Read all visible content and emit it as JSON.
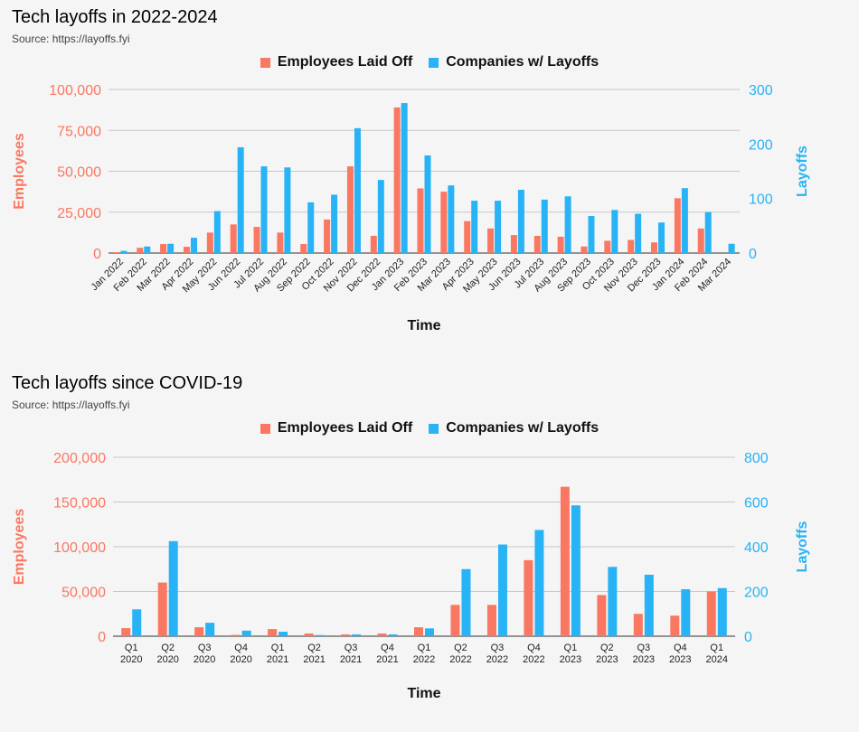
{
  "colors": {
    "employees": "#fa7762",
    "companies": "#27b3f5"
  },
  "chart_data": [
    {
      "type": "bar",
      "title": "Tech layoffs in 2022-2024",
      "subtitle": "Source: https://layoffs.fyi",
      "xlabel": "Time",
      "ylabel_left": "Employees",
      "ylabel_right": "Layoffs",
      "legend_position": "top-center",
      "grid": true,
      "ylim_left": [
        0,
        100000
      ],
      "ylim_right": [
        0,
        300
      ],
      "yticks_left": [
        "0",
        "25,000",
        "50,000",
        "75,000",
        "100,000"
      ],
      "yticks_right": [
        "0",
        "100",
        "200",
        "300"
      ],
      "categories": [
        "Jan 2022",
        "Feb 2022",
        "Mar 2022",
        "Apr 2022",
        "May 2022",
        "Jun 2022",
        "Jul 2022",
        "Aug 2022",
        "Sep 2022",
        "Oct 2022",
        "Nov 2022",
        "Dec 2022",
        "Jan 2023",
        "Feb 2023",
        "Mar 2023",
        "Apr 2023",
        "May 2023",
        "Jun 2023",
        "Jul 2023",
        "Aug 2023",
        "Sep 2023",
        "Oct 2023",
        "Nov 2023",
        "Dec 2023",
        "Jan 2024",
        "Feb 2024",
        "Mar 2024"
      ],
      "series": [
        {
          "name": "Employees Laid Off",
          "axis": "left",
          "values": [
            500,
            3200,
            5500,
            3800,
            12500,
            17500,
            16000,
            12500,
            5500,
            20500,
            53000,
            10500,
            89000,
            39500,
            37500,
            19500,
            15000,
            11000,
            10500,
            10000,
            4000,
            7500,
            8000,
            6500,
            33500,
            15000,
            0
          ]
        },
        {
          "name": "Companies w/ Layoffs",
          "axis": "right",
          "values": [
            4,
            12,
            17,
            28,
            77,
            194,
            159,
            157,
            93,
            107,
            229,
            134,
            275,
            179,
            124,
            96,
            96,
            116,
            98,
            104,
            68,
            79,
            72,
            56,
            119,
            75,
            17
          ]
        }
      ]
    },
    {
      "type": "bar",
      "title": "Tech layoffs since COVID-19",
      "subtitle": "Source: https://layoffs.fyi",
      "xlabel": "Time",
      "ylabel_left": "Employees",
      "ylabel_right": "Layoffs",
      "legend_position": "top-center",
      "grid": true,
      "ylim_left": [
        0,
        200000
      ],
      "ylim_right": [
        0,
        800
      ],
      "yticks_left": [
        "0",
        "50,000",
        "100,000",
        "150,000",
        "200,000"
      ],
      "yticks_right": [
        "0",
        "200",
        "400",
        "600",
        "800"
      ],
      "categories": [
        [
          "Q1",
          "2020"
        ],
        [
          "Q2",
          "2020"
        ],
        [
          "Q3",
          "2020"
        ],
        [
          "Q4",
          "2020"
        ],
        [
          "Q1",
          "2021"
        ],
        [
          "Q2",
          "2021"
        ],
        [
          "Q3",
          "2021"
        ],
        [
          "Q4",
          "2021"
        ],
        [
          "Q1",
          "2022"
        ],
        [
          "Q2",
          "2022"
        ],
        [
          "Q3",
          "2022"
        ],
        [
          "Q4",
          "2022"
        ],
        [
          "Q1",
          "2023"
        ],
        [
          "Q2",
          "2023"
        ],
        [
          "Q3",
          "2023"
        ],
        [
          "Q4",
          "2023"
        ],
        [
          "Q1",
          "2024"
        ]
      ],
      "series": [
        {
          "name": "Employees Laid Off",
          "axis": "left",
          "values": [
            9000,
            60000,
            10000,
            1500,
            8000,
            3000,
            2000,
            3000,
            10000,
            35000,
            35000,
            85000,
            167000,
            46000,
            25000,
            23000,
            50000
          ]
        },
        {
          "name": "Companies w/ Layoffs",
          "axis": "right",
          "values": [
            120,
            425,
            60,
            25,
            20,
            5,
            8,
            8,
            35,
            300,
            410,
            475,
            585,
            310,
            275,
            210,
            215
          ]
        }
      ]
    }
  ]
}
